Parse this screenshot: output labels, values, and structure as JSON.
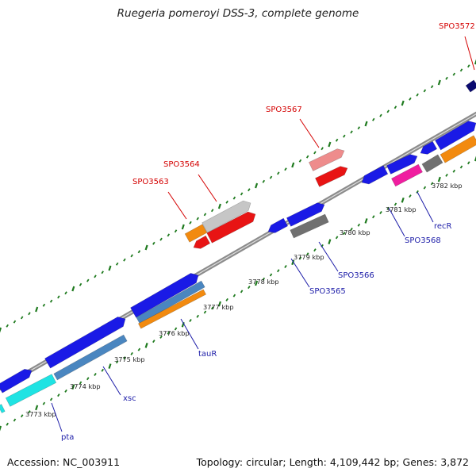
{
  "title": "Ruegeria pomeroyi DSS-3, complete genome",
  "footer": {
    "accession": "Accession: NC_003911",
    "summary": "Topology: circular; Length: 4,109,442 bp; Genes: 3,872"
  },
  "colors": {
    "backbone": "#8c8c8c",
    "dots": "#1e7a1e",
    "label_red": "#d40000",
    "label_blue": "#1c1ca8",
    "blue": "#1a1ae6",
    "red": "#e81414",
    "salmon": "#ee8c8c",
    "gray": "#c6c6c6",
    "darkgray": "#707070",
    "orange": "#f28a0f",
    "cyan": "#1fe3e3",
    "steel": "#4a86c0",
    "pink": "#f01ea0",
    "navy": "#0b0b70"
  },
  "ticks": [
    {
      "label": "3773 kbp"
    },
    {
      "label": "3774 kbp"
    },
    {
      "label": "3775 kbp"
    },
    {
      "label": "3776 kbp"
    },
    {
      "label": "3777 kbp"
    },
    {
      "label": "3778 kbp"
    },
    {
      "label": "3779 kbp"
    },
    {
      "label": "3780 kbp"
    },
    {
      "label": "3781 kbp"
    },
    {
      "label": "3782 kbp"
    }
  ],
  "labels": [
    {
      "text": "SPO3563",
      "tone": "red"
    },
    {
      "text": "SPO3564",
      "tone": "red"
    },
    {
      "text": "SPO3567",
      "tone": "red"
    },
    {
      "text": "SPO3572",
      "tone": "red"
    },
    {
      "text": "pta",
      "tone": "blue"
    },
    {
      "text": "xsc",
      "tone": "blue"
    },
    {
      "text": "tauR",
      "tone": "blue"
    },
    {
      "text": "SPO3565",
      "tone": "blue"
    },
    {
      "text": "SPO3566",
      "tone": "blue"
    },
    {
      "text": "SPO3568",
      "tone": "blue"
    },
    {
      "text": "recR",
      "tone": "blue"
    }
  ],
  "features": [
    {
      "name": "gene-top-1",
      "color": "blue"
    },
    {
      "name": "gene-top-2",
      "color": "blue"
    },
    {
      "name": "gene-top-3",
      "color": "blue"
    },
    {
      "name": "gene-top-4",
      "color": "blue"
    },
    {
      "name": "gene-top-5",
      "color": "blue"
    },
    {
      "name": "gene-top-6",
      "color": "blue"
    },
    {
      "name": "gene-top-7",
      "color": "blue"
    },
    {
      "name": "gene-top-8",
      "color": "blue"
    },
    {
      "name": "gene-top-9",
      "color": "navy"
    },
    {
      "name": "gene-bottom-cyan-1",
      "color": "cyan"
    },
    {
      "name": "gene-bottom-cyan-2",
      "color": "cyan"
    },
    {
      "name": "gene-bottom-steel-1",
      "color": "steel"
    },
    {
      "name": "gene-bottom-steel-2",
      "color": "steel"
    },
    {
      "name": "gene-bottom-orange-1",
      "color": "orange"
    },
    {
      "name": "gene-bottom-gray-1",
      "color": "darkgray"
    },
    {
      "name": "gene-bottom-pink-1",
      "color": "pink"
    },
    {
      "name": "gene-bottom-gray-2",
      "color": "darkgray"
    },
    {
      "name": "gene-bottom-orange-2",
      "color": "orange"
    },
    {
      "name": "gene-spo3563",
      "color": "orange"
    },
    {
      "name": "gene-spo3563-red",
      "color": "red"
    },
    {
      "name": "gene-spo3564",
      "color": "gray"
    },
    {
      "name": "gene-spo3564-red",
      "color": "red"
    },
    {
      "name": "gene-spo3567",
      "color": "salmon"
    },
    {
      "name": "gene-spo3567-red",
      "color": "red"
    }
  ]
}
